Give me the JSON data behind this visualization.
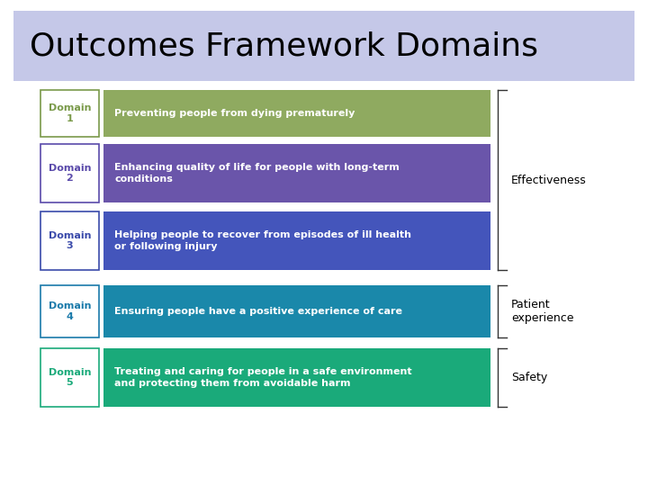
{
  "title": "Outcomes Framework Domains",
  "title_bg": "#c5c8e8",
  "background": "#ffffff",
  "domains": [
    {
      "number": "1",
      "label_color": "#7a9a4a",
      "box_color": "#8faa60",
      "text": "Preventing people from dying prematurely",
      "text_color": "#ffffff",
      "multiline": false
    },
    {
      "number": "2",
      "label_color": "#5a4aaa",
      "box_color": "#6a55aa",
      "text": "Enhancing quality of life for people with long-term\nconditions",
      "text_color": "#ffffff",
      "multiline": true
    },
    {
      "number": "3",
      "label_color": "#3a4aaa",
      "box_color": "#4455bb",
      "text": "Helping people to recover from episodes of ill health\nor following injury",
      "text_color": "#ffffff",
      "multiline": true
    },
    {
      "number": "4",
      "label_color": "#1a7aaa",
      "box_color": "#1a88aa",
      "text": "Ensuring people have a positive experience of care",
      "text_color": "#ffffff",
      "multiline": false
    },
    {
      "number": "5",
      "label_color": "#1aaa7a",
      "box_color": "#1aaa7a",
      "text": "Treating and caring for people in a safe environment\nand protecting them from avoidable harm",
      "text_color": "#ffffff",
      "multiline": true
    }
  ],
  "title_fontsize": 26,
  "domain_label_fontsize": 8,
  "domain_text_fontsize": 8,
  "bracket_label_fontsize": 9
}
